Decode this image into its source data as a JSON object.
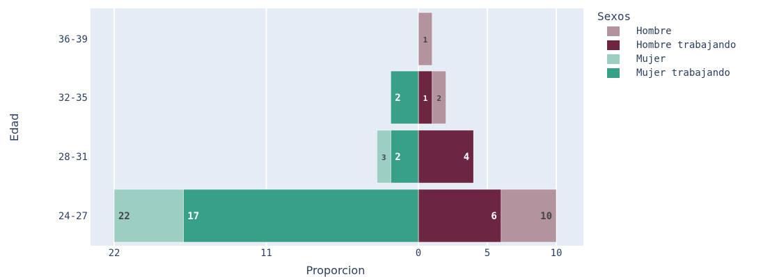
{
  "chart_data": {
    "type": "bar",
    "orientation": "horizontal",
    "barmode": "relative",
    "categories": [
      "24-27",
      "28-31",
      "32-35",
      "36-39"
    ],
    "series": [
      {
        "name": "Hombre",
        "color": "#b3939e",
        "side": "right",
        "values": [
          4,
          0,
          1,
          1
        ],
        "labels": [
          "10",
          "",
          "2",
          "1"
        ]
      },
      {
        "name": "Hombre trabajando",
        "color": "#6c2641",
        "side": "right",
        "values": [
          6,
          4,
          1,
          0
        ],
        "labels": [
          "6",
          "4",
          "1",
          ""
        ]
      },
      {
        "name": "Mujer",
        "color": "#9ccfc2",
        "side": "left",
        "values": [
          5,
          1,
          0,
          0
        ],
        "labels": [
          "22",
          "3",
          "",
          ""
        ]
      },
      {
        "name": "Mujer trabajando",
        "color": "#38a088",
        "side": "left",
        "values": [
          17,
          2,
          2,
          0
        ],
        "labels": [
          "17",
          "2",
          "2",
          ""
        ]
      }
    ],
    "xlabel": "Proporcion",
    "ylabel": "Edad",
    "xticks": [
      -22,
      -11,
      0,
      5,
      10
    ],
    "xtick_labels": [
      "22",
      "11",
      "0",
      "5",
      "10"
    ],
    "xlim": [
      -22,
      10
    ],
    "legend_title": "Sexos",
    "legend_position": "right",
    "grid": true,
    "background": "#e5ecf6"
  }
}
